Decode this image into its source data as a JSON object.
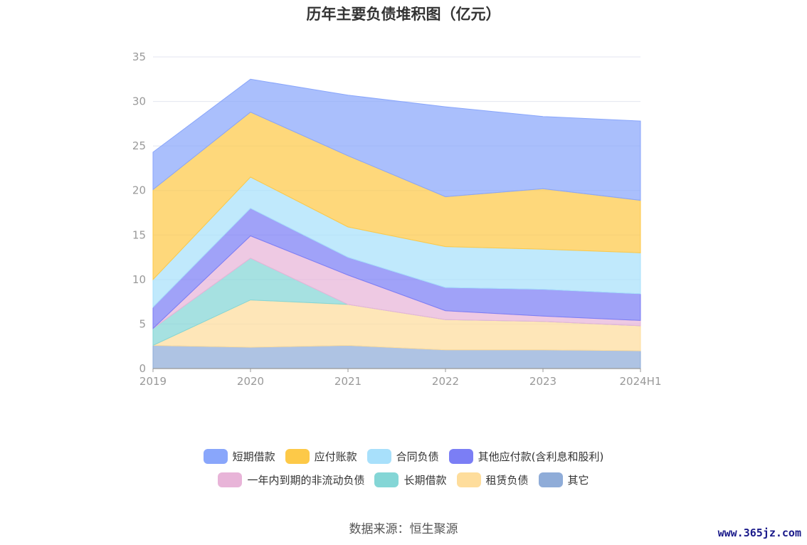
{
  "chart_data": {
    "type": "area",
    "stacked": true,
    "title": "历年主要负债堆积图（亿元）",
    "categories": [
      "2019",
      "2020",
      "2021",
      "2022",
      "2023",
      "2024H1"
    ],
    "ylim": [
      0,
      35
    ],
    "yticks": [
      0,
      5,
      10,
      15,
      20,
      25,
      30,
      35
    ],
    "grid": true,
    "legend_position": "bottom",
    "series": [
      {
        "name": "其它",
        "color": "#8facd8",
        "values": [
          2.6,
          2.4,
          2.6,
          2.1,
          2.1,
          2.0
        ]
      },
      {
        "name": "租赁负债",
        "color": "#fedd9c",
        "values": [
          0.0,
          5.3,
          4.6,
          3.4,
          3.2,
          2.8
        ]
      },
      {
        "name": "长期借款",
        "color": "#84d6d6",
        "values": [
          1.9,
          4.7,
          0.0,
          0.0,
          0.0,
          0.0
        ]
      },
      {
        "name": "一年内到期的非流动负债",
        "color": "#e8b4d8",
        "values": [
          0.0,
          2.5,
          3.3,
          1.0,
          0.6,
          0.6
        ]
      },
      {
        "name": "其他应付款(含利息和股利)",
        "color": "#7b7ef5",
        "values": [
          2.4,
          3.1,
          2.0,
          2.6,
          3.0,
          3.0
        ]
      },
      {
        "name": "合同负债",
        "color": "#a8e0fb",
        "values": [
          3.1,
          3.5,
          3.4,
          4.6,
          4.5,
          4.6
        ]
      },
      {
        "name": "应付账款",
        "color": "#fdc948",
        "values": [
          10.1,
          7.3,
          8.0,
          5.6,
          6.8,
          5.9
        ]
      },
      {
        "name": "短期借款",
        "color": "#89a6fb",
        "values": [
          4.2,
          3.7,
          6.8,
          10.1,
          8.1,
          8.9
        ]
      }
    ]
  },
  "legend": {
    "row1": [
      {
        "label": "短期借款",
        "color": "#89a6fb"
      },
      {
        "label": "应付账款",
        "color": "#fdc948"
      },
      {
        "label": "合同负债",
        "color": "#a8e0fb"
      },
      {
        "label": "其他应付款(含利息和股利)",
        "color": "#7b7ef5"
      }
    ],
    "row2": [
      {
        "label": "一年内到期的非流动负债",
        "color": "#e8b4d8"
      },
      {
        "label": "长期借款",
        "color": "#84d6d6"
      },
      {
        "label": "租赁负债",
        "color": "#fedd9c"
      },
      {
        "label": "其它",
        "color": "#8facd8"
      }
    ]
  },
  "source_text": "数据来源：恒生聚源",
  "watermark": "www.365jz.com"
}
